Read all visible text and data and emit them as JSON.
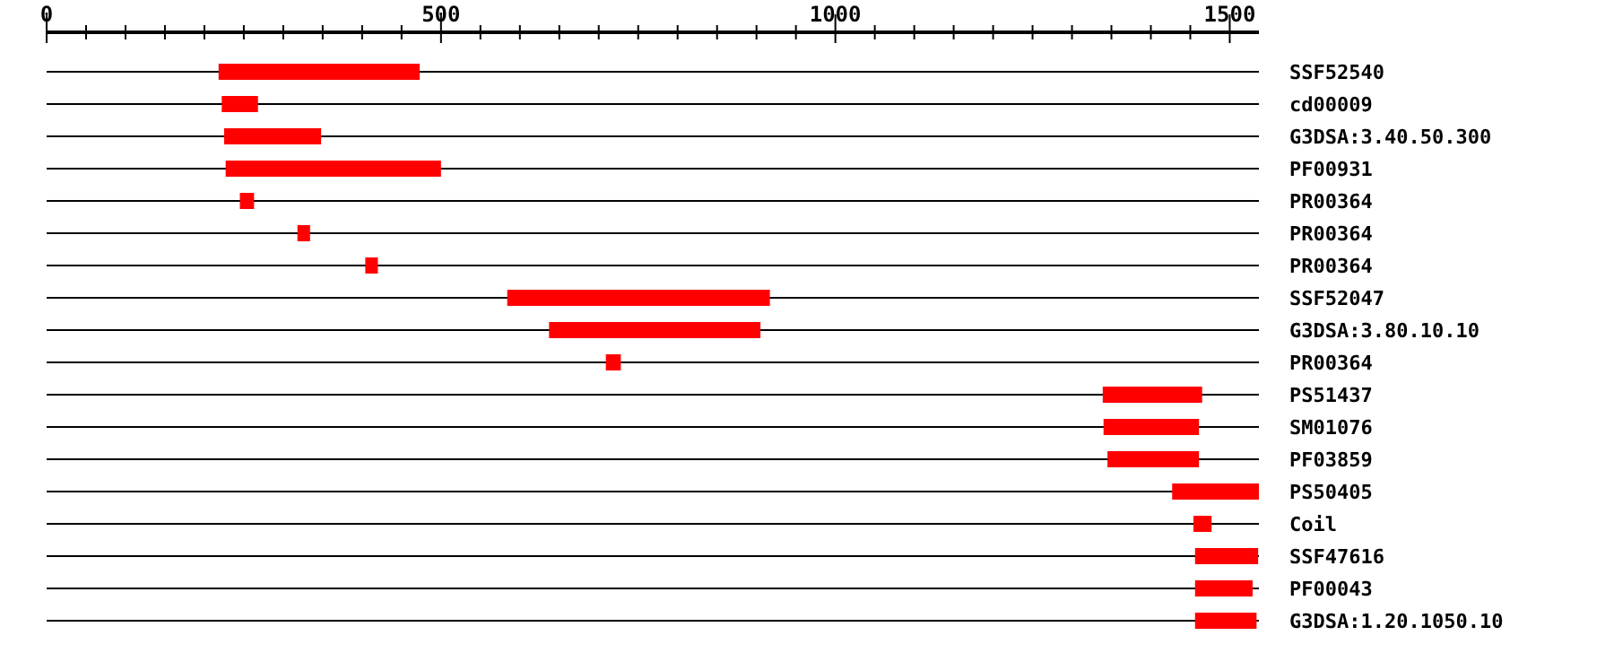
{
  "chart_data": {
    "type": "bar",
    "orientation": "horizontal",
    "grid": "y",
    "color": "#ff0000",
    "categories": [
      "SSF52540",
      "cd00009",
      "G3DSA:3.40.50.300",
      "PF00931",
      "PR00364",
      "PR00364",
      "PR00364",
      "SSF52047",
      "G3DSA:3.80.10.10",
      "PR00364",
      "PS51437",
      "SM01076",
      "PF03859",
      "PS50405",
      "Coil",
      "SSF47616",
      "PF00043",
      "G3DSA:1.20.1050.10"
    ],
    "base": [
      218,
      222,
      225,
      227,
      245,
      318,
      404,
      584,
      637,
      709,
      1339,
      1340,
      1345,
      1427,
      1454,
      1456,
      1456,
      1456
    ],
    "values": [
      255,
      46,
      123,
      273,
      18,
      16,
      16,
      333,
      268,
      19,
      126,
      121,
      116,
      110,
      23,
      80,
      73,
      78
    ],
    "xlim": [
      0,
      1537
    ],
    "xticks": [
      0,
      {
        "value": 50,
        "label": null
      },
      {
        "value": 100,
        "label": null
      },
      {
        "value": 150,
        "label": null
      },
      {
        "value": 200,
        "label": null
      },
      {
        "value": 250,
        "label": null
      },
      {
        "value": 300,
        "label": null
      },
      {
        "value": 350,
        "label": null
      },
      {
        "value": 400,
        "label": null
      },
      {
        "value": 450,
        "label": null
      },
      500,
      {
        "value": 550,
        "label": null
      },
      {
        "value": 600,
        "label": null
      },
      {
        "value": 650,
        "label": null
      },
      {
        "value": 700,
        "label": null
      },
      {
        "value": 750,
        "label": null
      },
      {
        "value": 800,
        "label": null
      },
      {
        "value": 850,
        "label": null
      },
      {
        "value": 900,
        "label": null
      },
      {
        "value": 950,
        "label": null
      },
      1000,
      {
        "value": 1050,
        "label": null
      },
      {
        "value": 1100,
        "label": null
      },
      {
        "value": 1150,
        "label": null
      },
      {
        "value": 1200,
        "label": null
      },
      {
        "value": 1250,
        "label": null
      },
      {
        "value": 1300,
        "label": null
      },
      {
        "value": 1350,
        "label": null
      },
      {
        "value": 1400,
        "label": null
      },
      {
        "value": 1450,
        "label": null
      },
      1500
    ]
  }
}
